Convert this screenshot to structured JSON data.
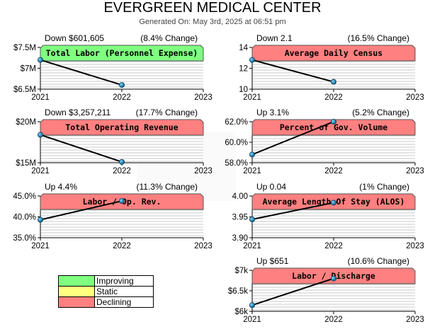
{
  "header": {
    "title": "EVERGREEN MEDICAL CENTER",
    "generated": "Generated On: May 3rd, 2025 at 06:51 pm"
  },
  "colors": {
    "improving": "#80ff80",
    "static": "#ffff80",
    "declining": "#ff8080"
  },
  "legend": [
    {
      "label": "Improving",
      "color": "#80ff80"
    },
    {
      "label": "Static",
      "color": "#ffff80"
    },
    {
      "label": "Declining",
      "color": "#ff8080"
    }
  ],
  "chart_data": [
    {
      "type": "line",
      "title": "Total Labor (Personnel Expense)",
      "status": "improving",
      "change_value": "Down $601,605",
      "change_pct": "(8.4% Change)",
      "x": [
        2021,
        2022
      ],
      "values": [
        7.2,
        6.6
      ],
      "xticks": [
        "2021",
        "2022",
        "2023"
      ],
      "ylim": [
        6.5,
        7.5
      ],
      "yticks": [
        7.5,
        7.0,
        6.5
      ],
      "ytick_labels": [
        "$7.5M",
        "$7M",
        "$6.5M"
      ]
    },
    {
      "type": "line",
      "title": "Average Daily Census",
      "status": "declining",
      "change_value": "Down 2.1",
      "change_pct": "(16.5% Change)",
      "x": [
        2021,
        2022
      ],
      "values": [
        12.8,
        10.7
      ],
      "xticks": [
        "2021",
        "2022",
        "2023"
      ],
      "ylim": [
        10,
        14
      ],
      "yticks": [
        14,
        12,
        10
      ],
      "ytick_labels": [
        "14",
        "12",
        "10"
      ]
    },
    {
      "type": "line",
      "title": "Total Operating Revenue",
      "status": "declining",
      "change_value": "Down $3,257,211",
      "change_pct": "(17.7% Change)",
      "x": [
        2021,
        2022
      ],
      "values": [
        18.4,
        15.1
      ],
      "xticks": [
        "2021",
        "2022",
        "2023"
      ],
      "ylim": [
        15,
        20
      ],
      "yticks": [
        20,
        15
      ],
      "ytick_labels": [
        "$20M",
        "$15M"
      ]
    },
    {
      "type": "line",
      "title": "Percent of Gov. Volume",
      "status": "declining",
      "change_value": "Up 3.1%",
      "change_pct": "(5.2% Change)",
      "x": [
        2021,
        2022
      ],
      "values": [
        58.8,
        62.0
      ],
      "xticks": [
        "2021",
        "2022",
        "2023"
      ],
      "ylim": [
        58,
        62
      ],
      "yticks": [
        62,
        60,
        58
      ],
      "ytick_labels": [
        "62.0%",
        "60.0%",
        "58.0%"
      ]
    },
    {
      "type": "line",
      "title": "Labor / Op. Rev.",
      "status": "declining",
      "change_value": "Up 4.4%",
      "change_pct": "(11.3% Change)",
      "x": [
        2021,
        2022
      ],
      "values": [
        39.3,
        43.8
      ],
      "xticks": [
        "2021",
        "2022",
        "2023"
      ],
      "ylim": [
        35,
        45
      ],
      "yticks": [
        45,
        40,
        35
      ],
      "ytick_labels": [
        "45.0%",
        "40.0%",
        "35.0%"
      ]
    },
    {
      "type": "line",
      "title": "Average Length Of Stay (ALOS)",
      "status": "declining",
      "change_value": "Up 0.04",
      "change_pct": "(1% Change)",
      "x": [
        2021,
        2022
      ],
      "values": [
        3.944,
        3.984
      ],
      "xticks": [
        "2021",
        "2022",
        "2023"
      ],
      "ylim": [
        3.9,
        4.0
      ],
      "yticks": [
        4.0,
        3.95,
        3.9
      ],
      "ytick_labels": [
        "4.00",
        "3.95",
        "3.90"
      ]
    },
    {
      "type": "line",
      "title": "Labor / Discharge",
      "status": "declining",
      "change_value": "Up $651",
      "change_pct": "(10.6% Change)",
      "x": [
        2021,
        2022
      ],
      "values": [
        6150,
        6800
      ],
      "xticks": [
        "2021",
        "2022",
        "2023"
      ],
      "ylim": [
        6000,
        7000
      ],
      "yticks": [
        7000,
        6500,
        6000
      ],
      "ytick_labels": [
        "$7k",
        "$6.5k",
        "$6k"
      ]
    }
  ]
}
